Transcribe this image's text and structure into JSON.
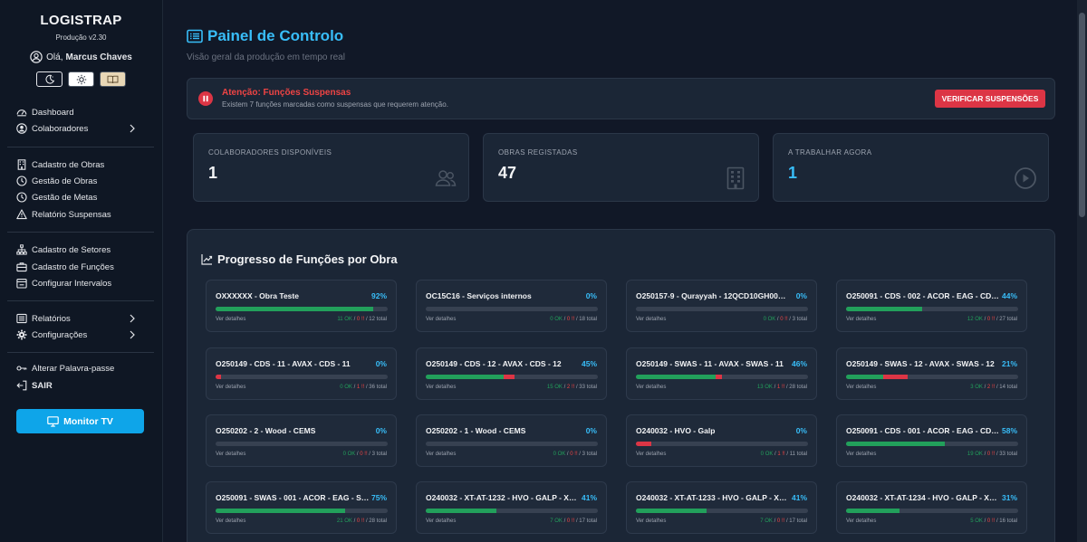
{
  "sidebar": {
    "brand": "LOGISTRAP",
    "version": "Produção v2.30",
    "greeting_prefix": "Olá,",
    "user_name": "Marcus Chaves",
    "nav": [
      {
        "label": "Dashboard",
        "icon": "dashboard-icon",
        "chevron": false
      },
      {
        "label": "Colaboradores",
        "icon": "user-circle-icon",
        "chevron": true
      },
      {
        "label": "Cadastro de Obras",
        "icon": "building-icon",
        "chevron": false
      },
      {
        "label": "Gestão de Obras",
        "icon": "clock-icon",
        "chevron": false
      },
      {
        "label": "Gestão de Metas",
        "icon": "clock-icon",
        "chevron": false
      },
      {
        "label": "Relatório Suspensas",
        "icon": "warning-icon",
        "chevron": false
      },
      {
        "label": "Cadastro de Setores",
        "icon": "sitemap-icon",
        "chevron": false
      },
      {
        "label": "Cadastro de Funções",
        "icon": "briefcase-icon",
        "chevron": false
      },
      {
        "label": "Configurar Intervalos",
        "icon": "calendar-icon",
        "chevron": false
      },
      {
        "label": "Relatórios",
        "icon": "list-icon",
        "chevron": true
      },
      {
        "label": "Configurações",
        "icon": "gear-icon",
        "chevron": true
      },
      {
        "label": "Alterar Palavra-passe",
        "icon": "key-icon",
        "chevron": false
      },
      {
        "label": "SAIR",
        "icon": "logout-icon",
        "chevron": false
      }
    ],
    "monitor_button": "Monitor TV"
  },
  "header": {
    "title": "Painel de Controlo",
    "subtitle": "Visão geral da produção em tempo real"
  },
  "alert": {
    "title": "Atenção: Funções Suspensas",
    "text": "Existem 7 funções marcadas como suspensas que requerem atenção.",
    "button": "VERIFICAR SUSPENSÕES"
  },
  "stats": [
    {
      "label": "COLABORADORES DISPONÍVEIS",
      "value": "1",
      "icon": "users-icon"
    },
    {
      "label": "OBRAS REGISTADAS",
      "value": "47",
      "icon": "building-icon"
    },
    {
      "label": "A TRABALHAR AGORA",
      "value": "1",
      "icon": "play-circle-icon"
    }
  ],
  "progress": {
    "title": "Progresso de Funções por Obra",
    "link_label": "Ver detalhes",
    "ok_suffix": "OK",
    "fail_suffix": "!!",
    "total_suffix": "total",
    "cards": [
      {
        "name": "OXXXXXX - Obra Teste",
        "pct": "92%",
        "ok": 11,
        "fail": 0,
        "total": 12
      },
      {
        "name": "OC15C16 - Serviços internos",
        "pct": "0%",
        "ok": 0,
        "fail": 0,
        "total": 18
      },
      {
        "name": "O250157-9 - Qurayyah - 12QCD10GH001 - Qurayyah",
        "pct": "0%",
        "ok": 0,
        "fail": 0,
        "total": 3
      },
      {
        "name": "O250091 - CDS - 002 - ACOR - EAG - CDS 002",
        "pct": "44%",
        "ok": 12,
        "fail": 0,
        "total": 27
      },
      {
        "name": "O250149 - CDS - 11 - AVAX - CDS - 11",
        "pct": "0%",
        "ok": 0,
        "fail": 1,
        "total": 36
      },
      {
        "name": "O250149 - CDS - 12 - AVAX - CDS - 12",
        "pct": "45%",
        "ok": 15,
        "fail": 2,
        "total": 33
      },
      {
        "name": "O250149 - SWAS - 11 - AVAX - SWAS - 11",
        "pct": "46%",
        "ok": 13,
        "fail": 1,
        "total": 28
      },
      {
        "name": "O250149 - SWAS - 12 - AVAX - SWAS - 12",
        "pct": "21%",
        "ok": 3,
        "fail": 2,
        "total": 14
      },
      {
        "name": "O250202 - 2 - Wood - CEMS",
        "pct": "0%",
        "ok": 0,
        "fail": 0,
        "total": 3
      },
      {
        "name": "O250202 - 1 - Wood - CEMS",
        "pct": "0%",
        "ok": 0,
        "fail": 0,
        "total": 3
      },
      {
        "name": "O240032 - HVO - Galp",
        "pct": "0%",
        "ok": 0,
        "fail": 1,
        "total": 11
      },
      {
        "name": "O250091 - CDS - 001 - ACOR - EAG - CDS 001",
        "pct": "58%",
        "ok": 19,
        "fail": 0,
        "total": 33
      },
      {
        "name": "O250091 - SWAS - 001 - ACOR - EAG - SWAS 001",
        "pct": "75%",
        "ok": 21,
        "fail": 0,
        "total": 28
      },
      {
        "name": "O240032 - XT-AT-1232 - HVO - GALP - XT-AT-1232",
        "pct": "41%",
        "ok": 7,
        "fail": 0,
        "total": 17
      },
      {
        "name": "O240032 - XT-AT-1233 - HVO - GALP - XT-AT-1233",
        "pct": "41%",
        "ok": 7,
        "fail": 0,
        "total": 17
      },
      {
        "name": "O240032 - XT-AT-1234 - HVO - GALP - XT-AT-1234",
        "pct": "31%",
        "ok": 5,
        "fail": 0,
        "total": 16
      }
    ]
  },
  "colors": {
    "accent": "#38bdf8",
    "ok": "#22a05b",
    "fail": "#dc3545",
    "background": "#111827"
  }
}
